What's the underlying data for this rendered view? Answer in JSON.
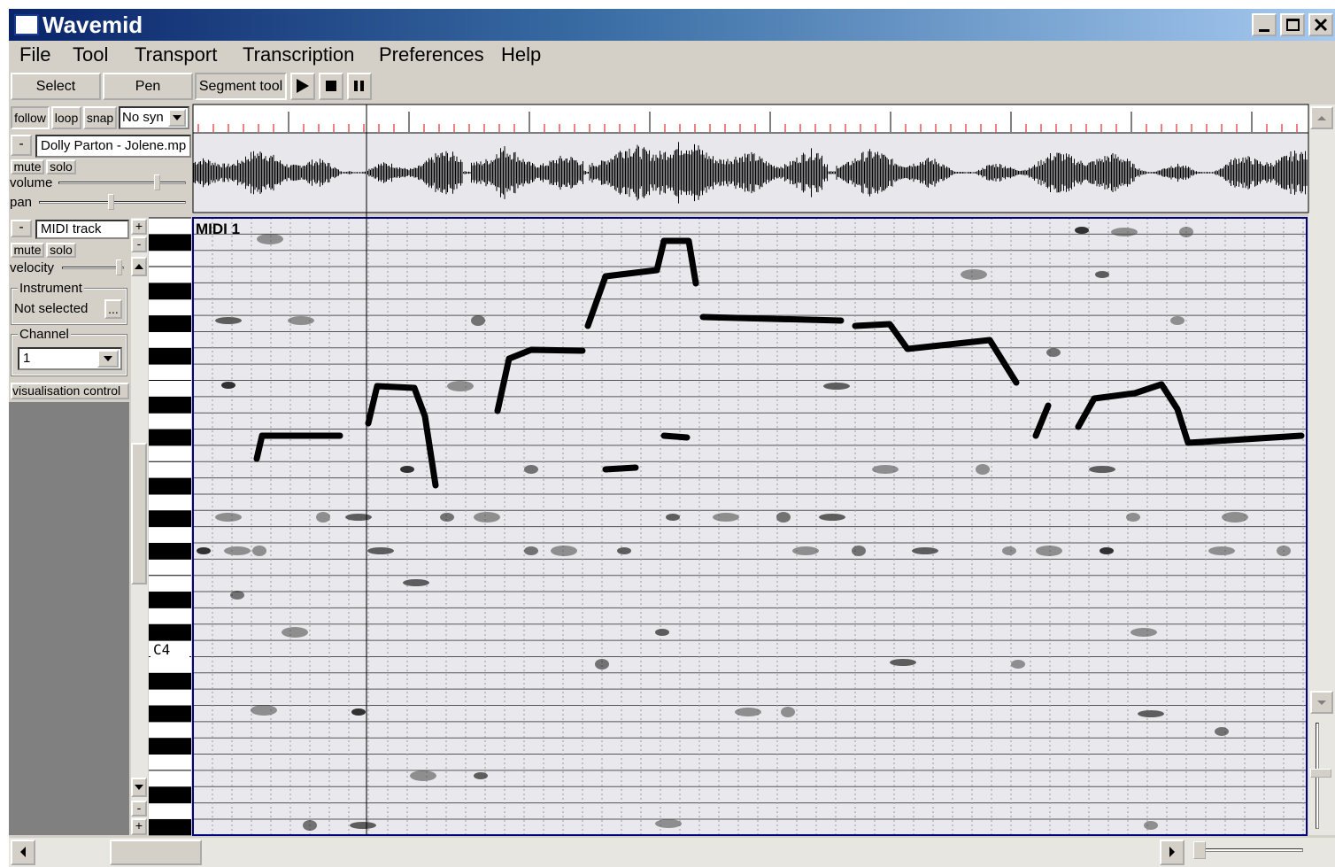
{
  "window": {
    "title": "Wavemid"
  },
  "menu": [
    "File",
    "Tool",
    "Transport",
    "Transcription",
    "Preferences",
    "Help"
  ],
  "toolbar": {
    "buttons": [
      "Select",
      "Pen",
      "Segment tool"
    ]
  },
  "audio_track": {
    "options": [
      "follow",
      "loop",
      "snap"
    ],
    "sync": "No syn",
    "collapse": "-",
    "name": "Dolly Parton - Jolene.mp",
    "buttons": [
      "mute",
      "solo"
    ],
    "sliders": [
      "volume",
      "pan"
    ]
  },
  "midi_track": {
    "collapse": "-",
    "name": "MIDI track",
    "add": "+",
    "buttons": [
      "mute",
      "solo"
    ],
    "slider": "velocity",
    "instrument_label": "Instrument",
    "instrument": "Not selected",
    "browse": "...",
    "channel_label": "Channel",
    "channel": "1",
    "visualisation": "visualisation control",
    "zoom_buttons": [
      "-",
      "-",
      "+"
    ]
  },
  "piano_roll": {
    "track_label": "MIDI 1",
    "note_label": "C4"
  }
}
